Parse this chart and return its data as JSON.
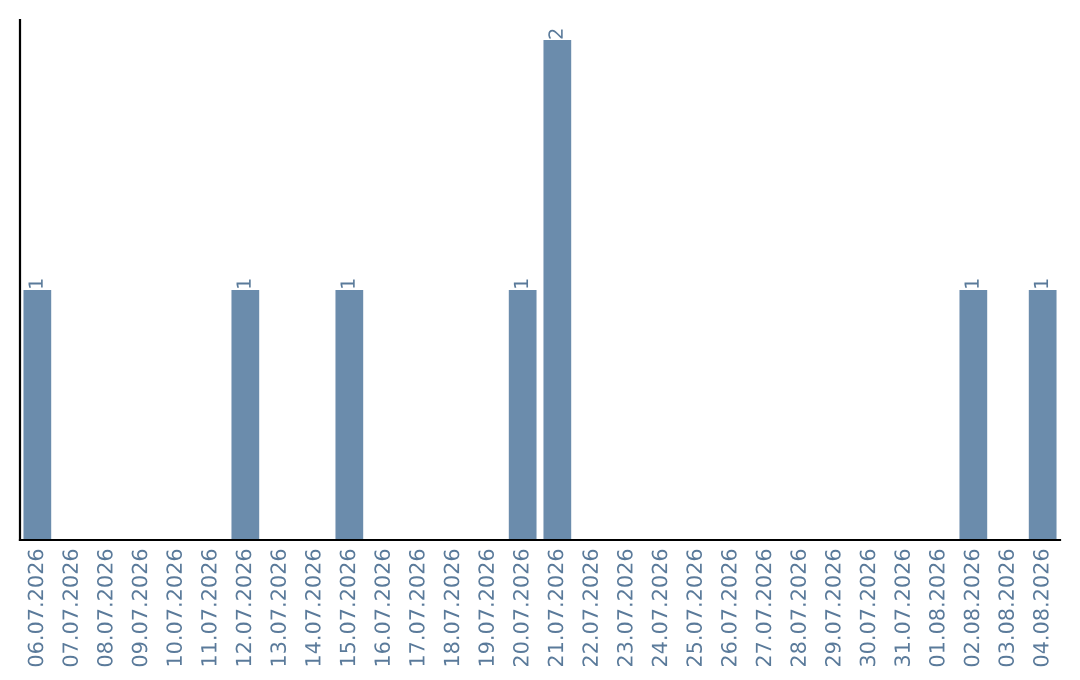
{
  "chart_data": {
    "type": "bar",
    "categories": [
      "06.07.2026",
      "07.07.2026",
      "08.07.2026",
      "09.07.2026",
      "10.07.2026",
      "11.07.2026",
      "12.07.2026",
      "13.07.2026",
      "14.07.2026",
      "15.07.2026",
      "16.07.2026",
      "17.07.2026",
      "18.07.2026",
      "19.07.2026",
      "20.07.2026",
      "21.07.2026",
      "22.07.2026",
      "23.07.2026",
      "24.07.2026",
      "25.07.2026",
      "26.07.2026",
      "27.07.2026",
      "28.07.2026",
      "29.07.2026",
      "30.07.2026",
      "31.07.2026",
      "01.08.2026",
      "02.08.2026",
      "03.08.2026",
      "04.08.2026"
    ],
    "values": [
      1,
      0,
      0,
      0,
      0,
      0,
      1,
      0,
      0,
      1,
      0,
      0,
      0,
      0,
      1,
      2,
      0,
      0,
      0,
      0,
      0,
      0,
      0,
      0,
      0,
      0,
      0,
      1,
      0,
      1
    ],
    "value_labels": [
      "1",
      null,
      null,
      null,
      null,
      null,
      "1",
      null,
      null,
      "1",
      null,
      null,
      null,
      null,
      "1",
      "2",
      null,
      null,
      null,
      null,
      null,
      null,
      null,
      null,
      null,
      null,
      null,
      "1",
      null,
      "1"
    ],
    "color": "#6b8cac",
    "tick_labels": "x"
  }
}
